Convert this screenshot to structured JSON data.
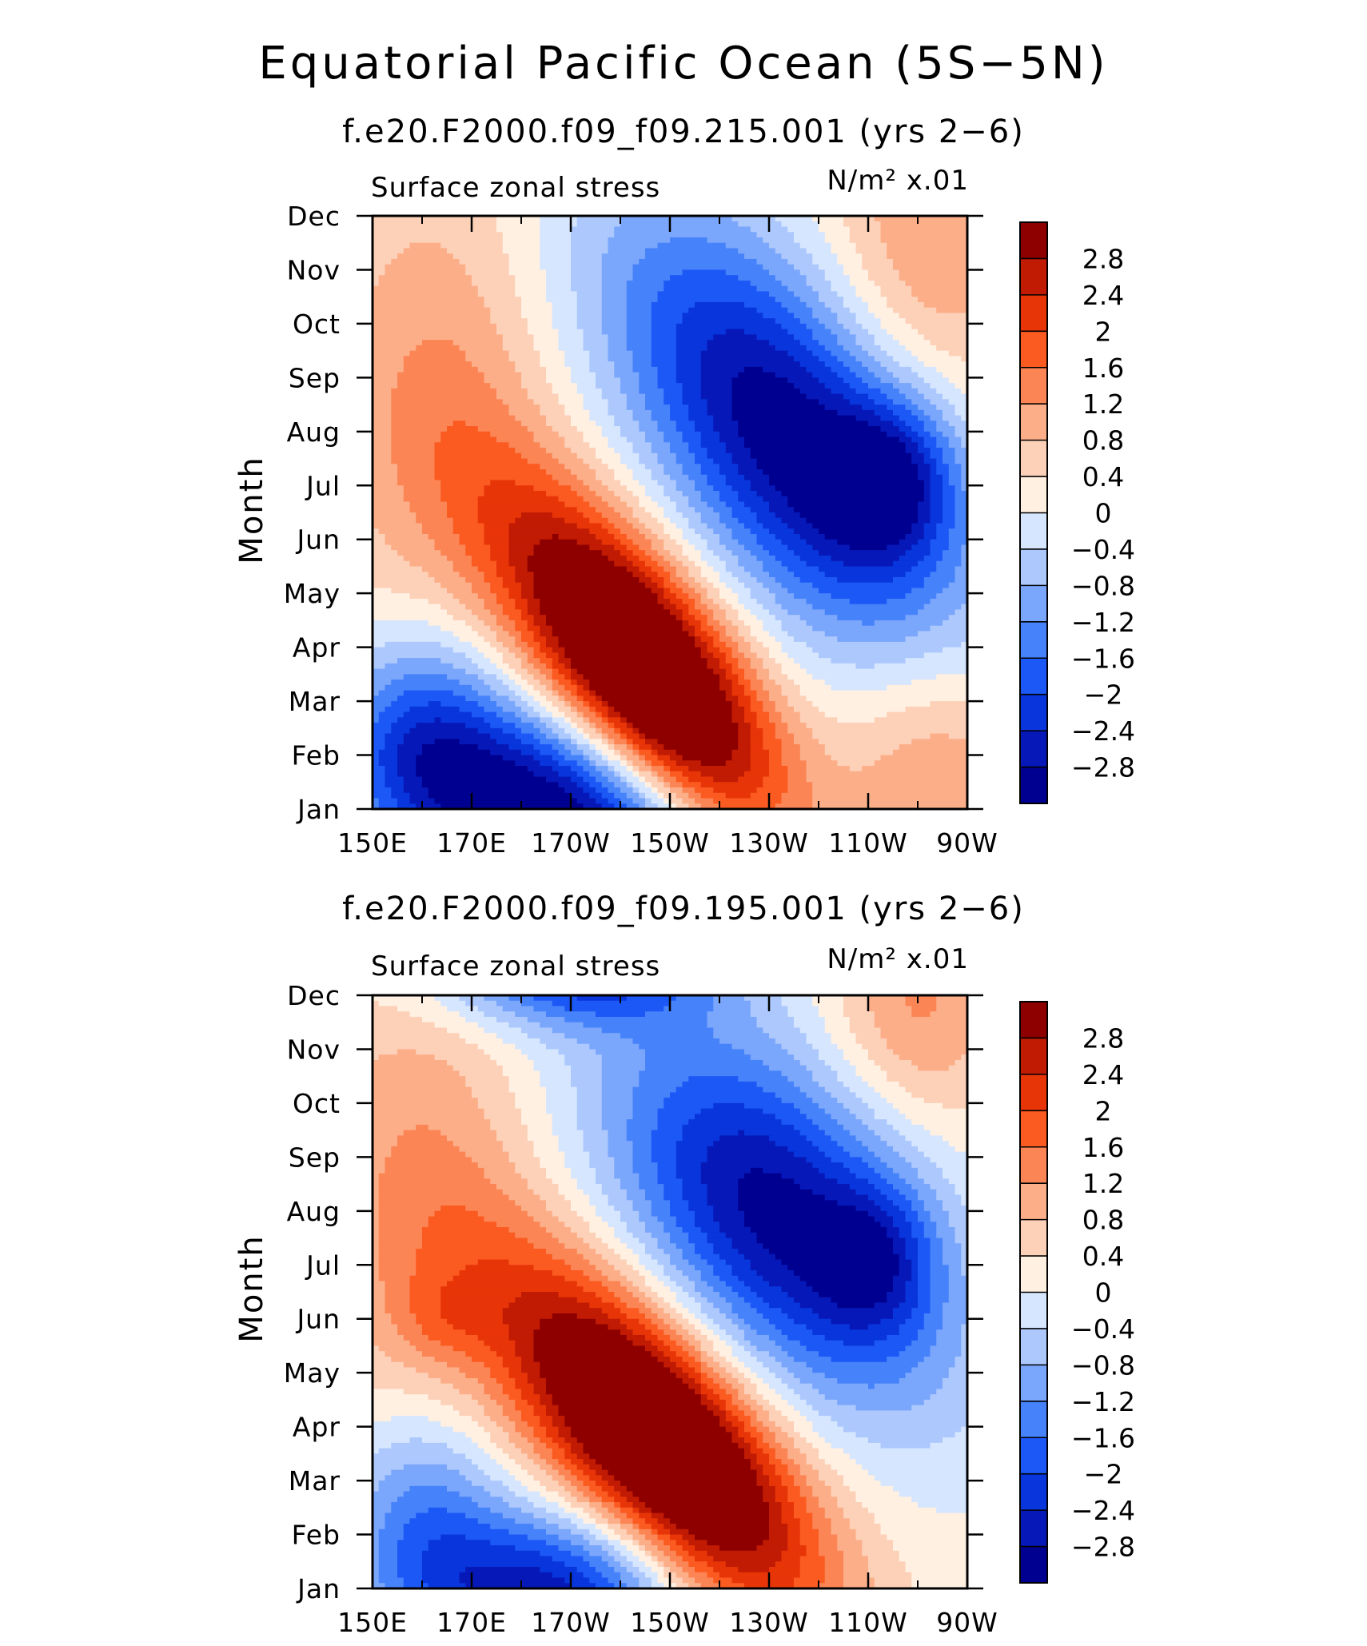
{
  "page": {
    "title": "Equatorial Pacific Ocean (5S−5N)"
  },
  "colormap": {
    "levels": [
      -2.8,
      -2.4,
      -2,
      -1.6,
      -1.2,
      -0.8,
      -0.4,
      0,
      0.4,
      0.8,
      1.2,
      1.6,
      2,
      2.4,
      2.8
    ],
    "level_labels": [
      "−2.8",
      "−2.4",
      "−2",
      "−1.6",
      "−1.2",
      "−0.8",
      "−0.4",
      "0",
      "0.4",
      "0.8",
      "1.2",
      "1.6",
      "2",
      "2.4",
      "2.8"
    ],
    "colors": [
      "#000090",
      "#0619b8",
      "#0935dc",
      "#1c58f5",
      "#4682fa",
      "#7aa6fb",
      "#acc8fd",
      "#d6e6fe",
      "#fff0e2",
      "#fdd0b8",
      "#fcae88",
      "#fb8555",
      "#fb5a20",
      "#e83508",
      "#c11b04",
      "#8e0000"
    ]
  },
  "chart_data": [
    {
      "type": "heatmap",
      "subtitle": "f.e20.F2000.f09_f09.215.001 (yrs 2−6)",
      "left_label": "Surface zonal stress",
      "right_label": "N/m² x.01",
      "units": "N/m² x.01",
      "ylabel": "Month",
      "x_ticks": [
        "150E",
        "170E",
        "170W",
        "150W",
        "130W",
        "110W",
        "90W"
      ],
      "x_tick_lon": [
        150,
        170,
        190,
        210,
        230,
        250,
        270
      ],
      "y_ticks": [
        "Jan",
        "Feb",
        "Mar",
        "Apr",
        "May",
        "Jun",
        "Jul",
        "Aug",
        "Sep",
        "Oct",
        "Nov",
        "Dec"
      ],
      "xlim": [
        150,
        270
      ],
      "ylim": [
        1,
        12
      ],
      "features": [
        {
          "lon": 205,
          "month": 3.5,
          "amp": 4.6,
          "slon": 20,
          "smon": 1.6,
          "tilt": -0.08
        },
        {
          "lon": 235,
          "month": 7.8,
          "amp": -3.4,
          "slon": 26,
          "smon": 2.2,
          "tilt": -0.07
        },
        {
          "lon": 255,
          "month": 7.2,
          "amp": -1.6,
          "slon": 9,
          "smon": 1.0,
          "tilt": 0
        },
        {
          "lon": 188,
          "month": 0.9,
          "amp": -3.5,
          "slon": 24,
          "smon": 1.3,
          "tilt": -0.02
        },
        {
          "lon": 160,
          "month": 2.4,
          "amp": -1.6,
          "slon": 12,
          "smon": 1.5,
          "tilt": 0
        },
        {
          "lon": 163,
          "month": 8.5,
          "amp": 1.0,
          "slon": 16,
          "smon": 3.2,
          "tilt": 0
        },
        {
          "lon": 262,
          "month": 11.5,
          "amp": 1.0,
          "slon": 14,
          "smon": 2.2,
          "tilt": 0
        },
        {
          "lon": 265,
          "month": 1.8,
          "amp": 1.2,
          "slon": 14,
          "smon": 2.0,
          "tilt": 0
        }
      ]
    },
    {
      "type": "heatmap",
      "subtitle": "f.e20.F2000.f09_f09.195.001 (yrs 2−6)",
      "left_label": "Surface zonal stress",
      "right_label": "N/m² x.01",
      "units": "N/m² x.01",
      "ylabel": "Month",
      "x_ticks": [
        "150E",
        "170E",
        "170W",
        "150W",
        "130W",
        "110W",
        "90W"
      ],
      "x_tick_lon": [
        150,
        170,
        190,
        210,
        230,
        250,
        270
      ],
      "y_ticks": [
        "Jan",
        "Feb",
        "Mar",
        "Apr",
        "May",
        "Jun",
        "Jul",
        "Aug",
        "Sep",
        "Oct",
        "Nov",
        "Dec"
      ],
      "xlim": [
        150,
        270
      ],
      "ylim": [
        1,
        12
      ],
      "features": [
        {
          "lon": 208,
          "month": 3.7,
          "amp": 4.6,
          "slon": 22,
          "smon": 1.6,
          "tilt": -0.07
        },
        {
          "lon": 232,
          "month": 7.9,
          "amp": -3.2,
          "slon": 24,
          "smon": 2.1,
          "tilt": -0.05
        },
        {
          "lon": 252,
          "month": 7.1,
          "amp": -1.2,
          "slon": 8,
          "smon": 1.0,
          "tilt": 0
        },
        {
          "lon": 186,
          "month": 0.9,
          "amp": -2.8,
          "slon": 20,
          "smon": 1.1,
          "tilt": 0
        },
        {
          "lon": 160,
          "month": 2.4,
          "amp": -1.6,
          "slon": 12,
          "smon": 1.5,
          "tilt": 0
        },
        {
          "lon": 190,
          "month": 12.4,
          "amp": -2.2,
          "slon": 20,
          "smon": 0.7,
          "tilt": 0
        },
        {
          "lon": 160,
          "month": 8.0,
          "amp": 1.0,
          "slon": 16,
          "smon": 3.4,
          "tilt": 0
        },
        {
          "lon": 164,
          "month": 6.0,
          "amp": 0.5,
          "slon": 7,
          "smon": 0.6,
          "tilt": 0
        },
        {
          "lon": 260,
          "month": 11.8,
          "amp": 1.1,
          "slon": 12,
          "smon": 1.5,
          "tilt": 0
        }
      ]
    }
  ]
}
